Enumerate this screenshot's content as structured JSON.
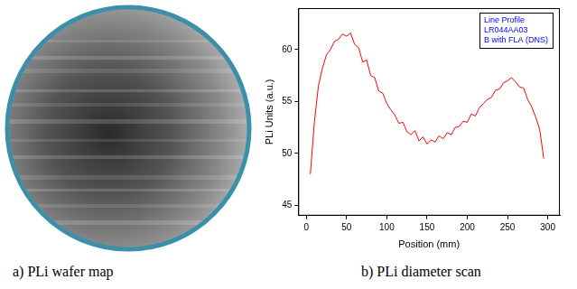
{
  "panels": {
    "a": {
      "caption": "a) PLi wafer map"
    },
    "b": {
      "caption": "b) PLi diameter scan"
    }
  },
  "chart_data": {
    "type": "line",
    "x_label": "Position (mm)",
    "y_label": "PLi Units (a.u.)",
    "annotations": [
      "Line Profile",
      "LR044AA03",
      "B with FLA (DNS)"
    ],
    "x": [
      5,
      10,
      15,
      20,
      25,
      30,
      35,
      40,
      45,
      50,
      55,
      60,
      65,
      70,
      75,
      80,
      85,
      90,
      95,
      100,
      105,
      110,
      115,
      120,
      125,
      130,
      135,
      140,
      145,
      150,
      155,
      160,
      165,
      170,
      175,
      180,
      185,
      190,
      195,
      200,
      205,
      210,
      215,
      220,
      225,
      230,
      235,
      240,
      245,
      250,
      255,
      260,
      265,
      270,
      275,
      280,
      285,
      290,
      295
    ],
    "values": [
      48,
      53,
      56.5,
      58.2,
      59.5,
      60,
      60.8,
      61,
      61.5,
      61.3,
      61.6,
      60.5,
      60.2,
      58.8,
      59,
      57.5,
      57.3,
      56,
      55.8,
      54.8,
      54.2,
      53.7,
      52.9,
      53,
      52.1,
      51.8,
      52.2,
      51.2,
      51.6,
      50.9,
      51.3,
      51.1,
      51.7,
      51.4,
      52,
      51.8,
      52.5,
      52.6,
      53.1,
      53,
      53.8,
      53.6,
      54.4,
      54.8,
      55.2,
      55.4,
      56.1,
      56.2,
      56.8,
      57,
      57.3,
      56.9,
      56.4,
      56.3,
      55.2,
      54.5,
      53.5,
      52.3,
      49.5
    ],
    "color": "#ff0000",
    "xlim": [
      -10,
      315
    ],
    "xticks": [
      0,
      50,
      100,
      150,
      200,
      250,
      300
    ],
    "ylim": [
      44,
      64
    ],
    "yticks": [
      45,
      50,
      55,
      60
    ],
    "grid": false
  }
}
